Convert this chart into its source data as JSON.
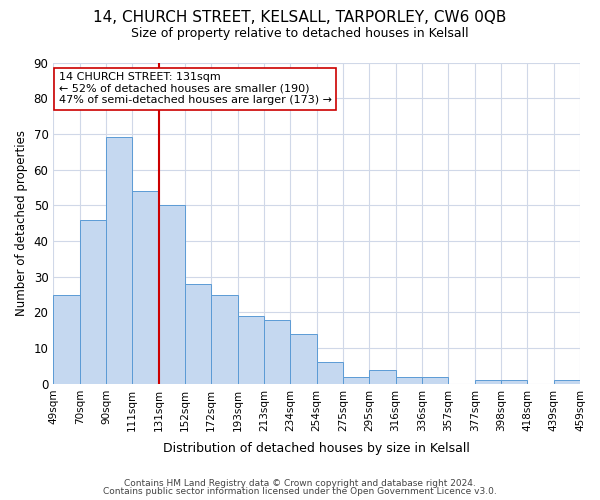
{
  "title1": "14, CHURCH STREET, KELSALL, TARPORLEY, CW6 0QB",
  "title2": "Size of property relative to detached houses in Kelsall",
  "xlabel": "Distribution of detached houses by size in Kelsall",
  "ylabel": "Number of detached properties",
  "bar_values": [
    25,
    46,
    69,
    54,
    50,
    28,
    25,
    19,
    18,
    14,
    6,
    2,
    4,
    2,
    2,
    0,
    1,
    1,
    0,
    1
  ],
  "x_labels": [
    "49sqm",
    "70sqm",
    "90sqm",
    "111sqm",
    "131sqm",
    "152sqm",
    "172sqm",
    "193sqm",
    "213sqm",
    "234sqm",
    "254sqm",
    "275sqm",
    "295sqm",
    "316sqm",
    "336sqm",
    "357sqm",
    "377sqm",
    "398sqm",
    "418sqm",
    "439sqm",
    "459sqm"
  ],
  "bar_color": "#c5d8f0",
  "bar_edge_color": "#5b9bd5",
  "red_line_index": 4,
  "annotation_title": "14 CHURCH STREET: 131sqm",
  "annotation_line1": "← 52% of detached houses are smaller (190)",
  "annotation_line2": "47% of semi-detached houses are larger (173) →",
  "annotation_box_color": "#ffffff",
  "annotation_box_edge": "#cc0000",
  "red_line_color": "#cc0000",
  "ylim": [
    0,
    90
  ],
  "yticks": [
    0,
    10,
    20,
    30,
    40,
    50,
    60,
    70,
    80,
    90
  ],
  "background_color": "#ffffff",
  "grid_color": "#d0d8e8",
  "title1_fontsize": 11,
  "title2_fontsize": 9,
  "footer1": "Contains HM Land Registry data © Crown copyright and database right 2024.",
  "footer2": "Contains public sector information licensed under the Open Government Licence v3.0."
}
